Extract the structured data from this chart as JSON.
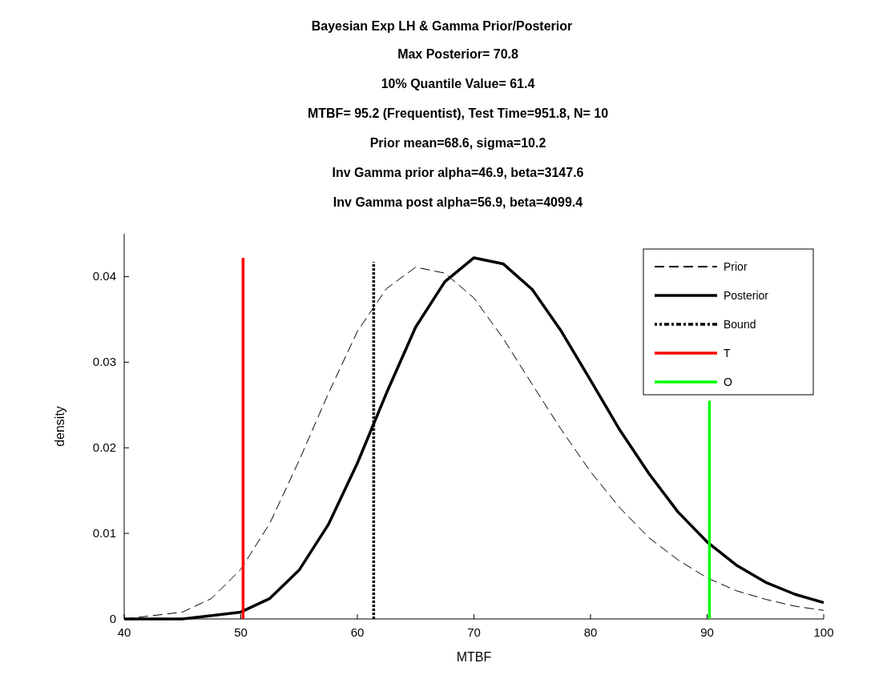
{
  "chart_data": {
    "type": "line",
    "title": "Bayesian Exp LH & Gamma Prior/Posterior",
    "annotations": [
      "Max Posterior= 70.8",
      "10% Quantile Value= 61.4",
      "MTBF= 95.2 (Frequentist), Test Time=951.8, N= 10",
      "Prior mean=68.6, sigma=10.2",
      "Inv Gamma prior alpha=46.9, beta=3147.6",
      "Inv Gamma post alpha=56.9, beta=4099.4"
    ],
    "xlabel": "MTBF",
    "ylabel": "density",
    "xlim": [
      40,
      100
    ],
    "xticks": [
      40,
      50,
      60,
      70,
      80,
      90,
      100
    ],
    "ylim": [
      0,
      0.045
    ],
    "yticks": [
      0,
      0.01,
      0.02,
      0.03,
      0.04
    ],
    "grid": false,
    "legend": "top right",
    "marker": "none",
    "series": [
      {
        "name": "Prior",
        "color": "#000000",
        "line_style": "dashed",
        "x": [
          40,
          45,
          47.5,
          50,
          52.5,
          55,
          57.5,
          60,
          62.5,
          65,
          67.5,
          70,
          72.5,
          75,
          77.5,
          80,
          82.5,
          85,
          87.5,
          90,
          92.5,
          95,
          97.5,
          100
        ],
        "values": [
          0.0,
          0.0008,
          0.0024,
          0.0058,
          0.0112,
          0.0185,
          0.0263,
          0.0336,
          0.0386,
          0.0411,
          0.0404,
          0.0375,
          0.0328,
          0.0274,
          0.0221,
          0.0172,
          0.013,
          0.0095,
          0.0069,
          0.0048,
          0.0033,
          0.0023,
          0.0015,
          0.001
        ]
      },
      {
        "name": "Posterior",
        "color": "#000000",
        "line_style": "solid",
        "x": [
          40,
          45,
          50,
          52.5,
          55,
          57.5,
          60,
          62.5,
          65,
          67.5,
          70,
          72.5,
          75,
          77.5,
          80,
          82.5,
          85,
          87.5,
          90,
          92.5,
          95,
          97.5,
          100
        ],
        "values": [
          0.0,
          0.0,
          0.0008,
          0.0024,
          0.0057,
          0.011,
          0.0182,
          0.0264,
          0.0341,
          0.0394,
          0.0422,
          0.0415,
          0.0385,
          0.0336,
          0.0279,
          0.0221,
          0.017,
          0.0125,
          0.009,
          0.0063,
          0.0043,
          0.0029,
          0.0019
        ]
      },
      {
        "name": "Bound",
        "color": "#000000",
        "line_style": "dotted",
        "x": [
          61.4,
          61.4
        ],
        "values": [
          0,
          0.0417
        ]
      },
      {
        "name": "T",
        "color": "#ff0000",
        "line_style": "solid",
        "x": [
          50.2,
          50.2
        ],
        "values": [
          0,
          0.0422
        ]
      },
      {
        "name": "O",
        "color": "#00ff00",
        "line_style": "solid",
        "x": [
          90.2,
          90.2
        ],
        "values": [
          0,
          0.0255
        ]
      }
    ]
  }
}
